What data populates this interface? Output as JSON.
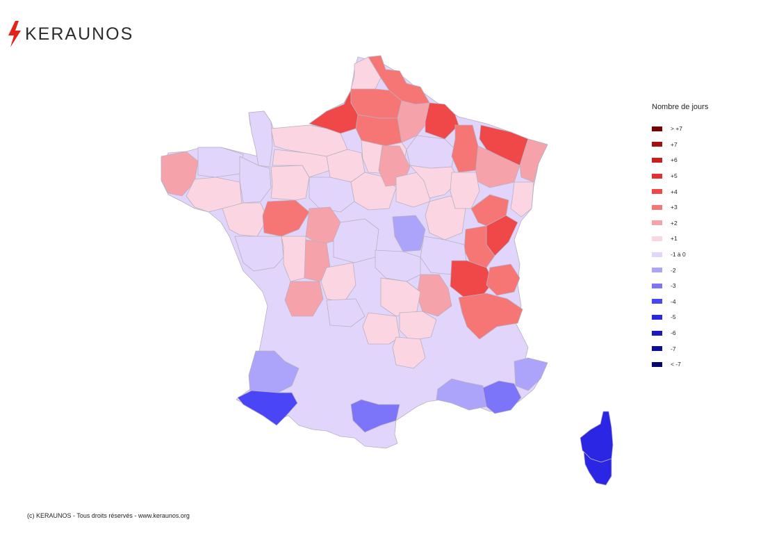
{
  "brand": {
    "name": "KERAUNOS",
    "icon": "lightning-bolt-icon",
    "accent": "#e2231a"
  },
  "legend": {
    "title": "Nombre de jours",
    "items": [
      {
        "label": "> +7",
        "color": "#7b0000"
      },
      {
        "label": "+7",
        "color": "#a50f0f"
      },
      {
        "label": "+6",
        "color": "#c81e1e"
      },
      {
        "label": "+5",
        "color": "#e03030"
      },
      {
        "label": "+4",
        "color": "#f04848"
      },
      {
        "label": "+3",
        "color": "#f67676"
      },
      {
        "label": "+2",
        "color": "#f6a2ab"
      },
      {
        "label": "+1",
        "color": "#fbd5e2"
      },
      {
        "label": "-1 à 0",
        "color": "#e2d5fb"
      },
      {
        "label": "-2",
        "color": "#aca4fa"
      },
      {
        "label": "-3",
        "color": "#7c74f9"
      },
      {
        "label": "-4",
        "color": "#4a46f7"
      },
      {
        "label": "-5",
        "color": "#2a26e4"
      },
      {
        "label": "-6",
        "color": "#1a1abf"
      },
      {
        "label": "-7",
        "color": "#0c0c98"
      },
      {
        "label": "< -7",
        "color": "#050570"
      }
    ]
  },
  "footer": {
    "copyright": "(c) KERAUNOS - Tous droits réservés - www.keraunos.org"
  }
}
